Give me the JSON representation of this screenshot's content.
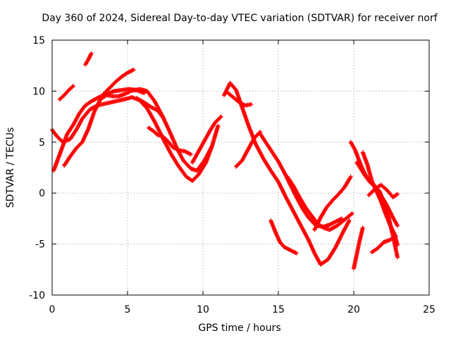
{
  "chart_data": {
    "type": "scatter",
    "title": "Day 360 of 2024, Sidereal Day-to-day VTEC variation (SDTVAR) for receiver norf",
    "xlabel": "GPS time / hours",
    "ylabel": "SDTVAR / TECUs",
    "xlim": [
      0,
      25
    ],
    "ylim": [
      -10,
      15
    ],
    "xticks": [
      0,
      5,
      10,
      15,
      20,
      25
    ],
    "yticks": [
      -10,
      -5,
      0,
      5,
      10,
      15
    ],
    "xtick_labels": [
      "0",
      "5",
      "10",
      "15",
      "20",
      "25"
    ],
    "ytick_labels": [
      "-10",
      "-5",
      "0",
      "5",
      "10",
      "15"
    ],
    "grid": true,
    "marker": "+",
    "color": "#ff0000",
    "series": [
      {
        "name": "trace-1",
        "x": [
          0.0,
          0.3,
          0.7,
          1.2,
          1.6,
          2.0,
          2.5,
          3.0,
          3.6,
          4.2,
          4.8,
          5.3,
          5.8,
          6.3,
          6.8,
          7.4,
          7.9,
          8.4,
          8.9,
          9.3,
          9.7,
          10.2,
          10.6,
          11.0
        ],
        "y": [
          6.2,
          5.6,
          5.0,
          5.3,
          6.2,
          7.3,
          8.2,
          8.6,
          8.8,
          9.0,
          9.2,
          9.4,
          9.1,
          8.3,
          7.0,
          5.2,
          3.8,
          2.6,
          1.6,
          1.2,
          1.8,
          3.0,
          4.6,
          6.6
        ]
      },
      {
        "name": "trace-2",
        "x": [
          0.1,
          0.4,
          0.7,
          1.0,
          1.4,
          1.8,
          2.2,
          2.6,
          3.1,
          3.6,
          4.1,
          4.6,
          5.1,
          5.6,
          6.1
        ],
        "y": [
          2.2,
          3.4,
          4.6,
          5.8,
          6.7,
          7.8,
          8.6,
          9.0,
          9.4,
          9.7,
          10.0,
          10.1,
          10.2,
          10.1,
          9.8
        ]
      },
      {
        "name": "trace-3",
        "x": [
          0.5,
          0.8,
          1.1,
          1.4
        ],
        "y": [
          9.2,
          9.6,
          10.1,
          10.5
        ]
      },
      {
        "name": "trace-4",
        "x": [
          0.8,
          1.2,
          1.6,
          2.0,
          2.4,
          2.8,
          3.2,
          3.6,
          4.0,
          4.4,
          4.8,
          5.1
        ],
        "y": [
          2.7,
          3.6,
          4.4,
          5.0,
          6.3,
          8.0,
          9.2,
          9.6,
          9.5,
          9.5,
          9.7,
          9.9
        ]
      },
      {
        "name": "trace-5",
        "x": [
          2.2,
          2.4,
          2.6
        ],
        "y": [
          12.6,
          13.1,
          13.7
        ]
      },
      {
        "name": "trace-6",
        "x": [
          3.4,
          3.8,
          4.2,
          4.6,
          5.0,
          5.4
        ],
        "y": [
          9.7,
          10.3,
          10.9,
          11.4,
          11.8,
          12.1
        ]
      },
      {
        "name": "trace-7",
        "x": [
          5.2,
          5.8,
          6.3,
          6.8,
          7.3,
          7.8,
          8.3,
          8.7,
          9.2,
          9.6,
          10.1,
          10.6
        ],
        "y": [
          10.0,
          10.2,
          10.0,
          9.0,
          7.6,
          6.0,
          4.3,
          3.2,
          2.4,
          2.2,
          3.2,
          4.6
        ]
      },
      {
        "name": "trace-8",
        "x": [
          5.6,
          6.1,
          6.6,
          7.0,
          7.4
        ],
        "y": [
          9.3,
          8.9,
          8.4,
          8.1,
          7.3
        ]
      },
      {
        "name": "trace-9",
        "x": [
          6.4,
          6.7,
          7.0,
          7.3,
          7.6,
          8.0,
          8.4,
          8.8,
          9.2
        ],
        "y": [
          6.4,
          6.1,
          5.7,
          5.6,
          5.2,
          4.5,
          4.2,
          4.1,
          3.8
        ]
      },
      {
        "name": "trace-10",
        "x": [
          9.3,
          9.6,
          9.9,
          10.2,
          10.5,
          10.8,
          11.2
        ],
        "y": [
          3.0,
          3.8,
          4.6,
          5.4,
          6.2,
          6.9,
          7.5
        ]
      },
      {
        "name": "trace-11",
        "x": [
          11.4,
          11.8,
          12.2,
          12.6,
          13.0,
          13.5,
          14.0,
          14.5,
          15.0,
          15.5,
          16.0,
          16.5,
          17.0,
          17.4,
          17.8,
          18.3,
          18.8,
          19.3,
          19.7
        ],
        "y": [
          9.6,
          10.8,
          10.1,
          8.4,
          6.7,
          4.8,
          3.4,
          2.2,
          1.1,
          -0.4,
          -1.8,
          -3.2,
          -4.6,
          -5.9,
          -7.0,
          -6.5,
          -5.3,
          -3.8,
          -2.7
        ]
      },
      {
        "name": "trace-12",
        "x": [
          11.6,
          12.0,
          12.4,
          12.8,
          13.2
        ],
        "y": [
          9.9,
          9.4,
          8.9,
          8.6,
          8.7
        ]
      },
      {
        "name": "trace-13",
        "x": [
          12.2,
          12.6,
          13.0,
          13.4,
          13.8
        ],
        "y": [
          2.6,
          3.2,
          4.3,
          5.4,
          6.0
        ]
      },
      {
        "name": "trace-14",
        "x": [
          13.8,
          14.2,
          14.6,
          15.0,
          15.4,
          15.8,
          16.2,
          16.6,
          17.0,
          17.5,
          18.0,
          18.4,
          18.8,
          19.2
        ],
        "y": [
          5.8,
          4.9,
          4.0,
          3.1,
          2.0,
          0.8,
          -0.4,
          -1.5,
          -2.4,
          -3.2,
          -3.3,
          -3.1,
          -2.8,
          -2.5
        ]
      },
      {
        "name": "trace-15",
        "x": [
          14.5,
          14.8,
          15.1,
          15.4,
          15.8,
          16.2
        ],
        "y": [
          -2.7,
          -3.8,
          -4.8,
          -5.3,
          -5.6,
          -5.9
        ]
      },
      {
        "name": "trace-16",
        "x": [
          15.6,
          16.0,
          16.4,
          16.8,
          17.2,
          17.6,
          18.0,
          18.4,
          18.9,
          19.4,
          19.9
        ],
        "y": [
          1.6,
          0.7,
          -0.4,
          -1.4,
          -2.2,
          -3.0,
          -3.4,
          -3.6,
          -3.2,
          -2.6,
          -2.0
        ]
      },
      {
        "name": "trace-17",
        "x": [
          17.4,
          17.8,
          18.2,
          18.6,
          19.0,
          19.4,
          19.8
        ],
        "y": [
          -3.6,
          -2.4,
          -1.4,
          -0.7,
          -0.1,
          0.6,
          1.6
        ]
      },
      {
        "name": "trace-18",
        "x": [
          19.8,
          20.1,
          20.4,
          20.7,
          21.0,
          21.4,
          21.8,
          22.2,
          22.6,
          22.9
        ],
        "y": [
          5.0,
          4.2,
          3.0,
          2.0,
          1.2,
          0.6,
          -0.2,
          -1.2,
          -2.4,
          -3.2
        ]
      },
      {
        "name": "trace-19",
        "x": [
          20.0,
          20.2,
          20.4,
          20.6
        ],
        "y": [
          -7.4,
          -6.0,
          -4.6,
          -3.4
        ]
      },
      {
        "name": "trace-20",
        "x": [
          20.2,
          20.5,
          20.8,
          21.1,
          21.4,
          21.7,
          22.0,
          22.3,
          22.6,
          22.9
        ],
        "y": [
          3.0,
          2.3,
          1.6,
          1.1,
          0.7,
          0.2,
          -0.9,
          -2.3,
          -4.2,
          -6.3
        ]
      },
      {
        "name": "trace-21",
        "x": [
          20.6,
          20.9,
          21.2,
          21.5,
          21.8,
          22.1,
          22.4,
          22.7,
          22.9
        ],
        "y": [
          4.0,
          2.8,
          1.2,
          0.2,
          -0.8,
          -2.0,
          -3.1,
          -4.0,
          -5.1
        ]
      },
      {
        "name": "trace-22",
        "x": [
          21.2,
          21.6,
          22.0,
          22.4,
          22.8
        ],
        "y": [
          -5.8,
          -5.4,
          -4.8,
          -4.6,
          -4.2
        ]
      },
      {
        "name": "trace-23",
        "x": [
          21.0,
          21.4,
          21.8,
          22.2,
          22.6,
          22.9
        ],
        "y": [
          -0.2,
          0.4,
          0.8,
          0.3,
          -0.4,
          -0.1
        ]
      }
    ]
  }
}
